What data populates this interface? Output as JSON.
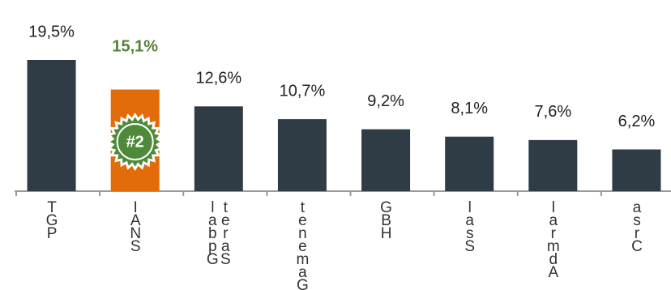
{
  "chart_data": {
    "type": "bar",
    "categories": [
      "TGP",
      "IANS",
      "labpG\nteraS",
      "tenemaG",
      "GBH",
      "lasS",
      "larmdA",
      "asrC"
    ],
    "values": [
      19.5,
      15.1,
      12.6,
      10.7,
      9.2,
      8.1,
      7.6,
      6.2
    ],
    "value_labels": [
      "19,5%",
      "15,1%",
      "12,6%",
      "10,7%",
      "9,2%",
      "8,1%",
      "7,6%",
      "6,2%"
    ],
    "color": "#2f3b45",
    "highlight": {
      "index": 1,
      "color": "#e36c0a",
      "label_color": "#548235",
      "badge": "#2",
      "badge_color": "#4e8a3a"
    }
  }
}
